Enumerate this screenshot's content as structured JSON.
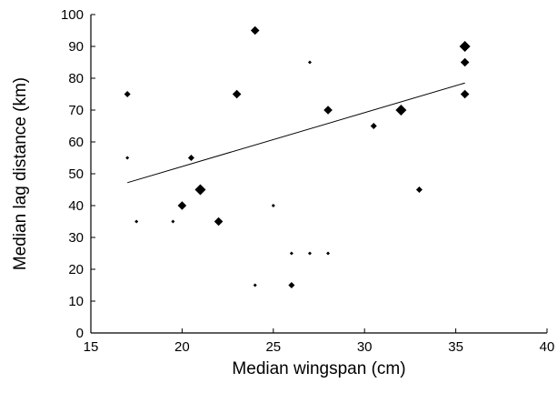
{
  "chart_data": {
    "type": "scatter",
    "title": "",
    "xlabel": "Median wingspan (cm)",
    "ylabel": "Median lag distance (km)",
    "xlim": [
      15,
      40
    ],
    "ylim": [
      0,
      100
    ],
    "xticks": [
      "15",
      "20",
      "25",
      "30",
      "35",
      "40"
    ],
    "yticks": [
      "0",
      "10",
      "20",
      "30",
      "40",
      "50",
      "60",
      "70",
      "80",
      "90",
      "100"
    ],
    "grid": false,
    "legend": "none",
    "marker": "diamond",
    "marker_color": "#000000",
    "points": [
      {
        "x": 17.0,
        "y": 75,
        "w": 2
      },
      {
        "x": 17.0,
        "y": 55,
        "w": 1
      },
      {
        "x": 17.5,
        "y": 35,
        "w": 1
      },
      {
        "x": 19.5,
        "y": 35,
        "w": 1
      },
      {
        "x": 20.0,
        "y": 40,
        "w": 3
      },
      {
        "x": 20.5,
        "y": 55,
        "w": 2
      },
      {
        "x": 21.0,
        "y": 45,
        "w": 4
      },
      {
        "x": 22.0,
        "y": 35,
        "w": 3
      },
      {
        "x": 23.0,
        "y": 75,
        "w": 3
      },
      {
        "x": 24.0,
        "y": 95,
        "w": 3
      },
      {
        "x": 24.0,
        "y": 15,
        "w": 1
      },
      {
        "x": 25.0,
        "y": 40,
        "w": 1
      },
      {
        "x": 26.0,
        "y": 25,
        "w": 1
      },
      {
        "x": 26.0,
        "y": 15,
        "w": 2
      },
      {
        "x": 27.0,
        "y": 85,
        "w": 1
      },
      {
        "x": 27.0,
        "y": 25,
        "w": 1
      },
      {
        "x": 28.0,
        "y": 25,
        "w": 1
      },
      {
        "x": 28.0,
        "y": 70,
        "w": 3
      },
      {
        "x": 30.5,
        "y": 65,
        "w": 2
      },
      {
        "x": 32.0,
        "y": 70,
        "w": 4
      },
      {
        "x": 33.0,
        "y": 45,
        "w": 2
      },
      {
        "x": 35.5,
        "y": 90,
        "w": 4
      },
      {
        "x": 35.5,
        "y": 85,
        "w": 3
      },
      {
        "x": 35.5,
        "y": 75,
        "w": 3
      }
    ],
    "trendline": {
      "x": [
        17.0,
        35.5
      ],
      "y": [
        47.2,
        78.5
      ]
    }
  }
}
